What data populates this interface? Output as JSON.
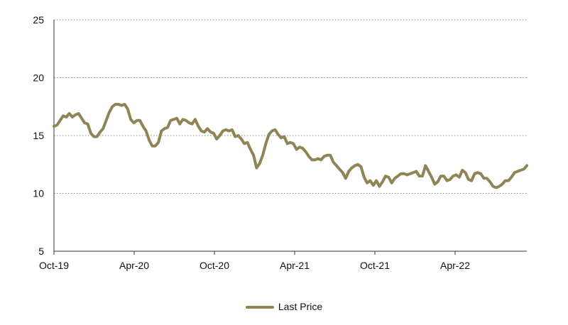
{
  "chart_data": {
    "type": "line",
    "x_tick_labels": [
      "Oct-19",
      "Apr-20",
      "Oct-20",
      "Apr-21",
      "Oct-21",
      "Apr-22"
    ],
    "y_ticks": [
      5,
      10,
      15,
      20,
      25
    ],
    "ylim": [
      5,
      25
    ],
    "grid": "horizontal dotted",
    "legend_position": "bottom",
    "series": [
      {
        "name": "Last Price",
        "color": "#8F8455",
        "values": [
          15.8,
          15.9,
          16.3,
          16.7,
          16.6,
          16.9,
          16.6,
          16.8,
          16.9,
          16.5,
          16.1,
          16.0,
          15.2,
          14.9,
          14.9,
          15.3,
          15.6,
          16.3,
          17.0,
          17.5,
          17.7,
          17.7,
          17.6,
          17.7,
          17.3,
          16.4,
          16.1,
          16.3,
          16.3,
          15.8,
          15.4,
          14.6,
          14.1,
          14.1,
          14.4,
          15.4,
          15.6,
          15.7,
          16.3,
          16.4,
          16.5,
          16.0,
          16.4,
          16.3,
          16.1,
          16.0,
          16.4,
          15.8,
          15.4,
          15.3,
          15.6,
          15.3,
          15.2,
          14.7,
          15.0,
          15.4,
          15.5,
          15.4,
          15.5,
          14.9,
          15.0,
          14.7,
          14.3,
          14.4,
          13.8,
          13.3,
          12.2,
          12.6,
          13.3,
          14.3,
          15.1,
          15.4,
          15.5,
          15.1,
          14.8,
          14.9,
          14.3,
          14.4,
          14.3,
          13.8,
          14.0,
          13.9,
          13.6,
          13.2,
          12.9,
          12.9,
          13.0,
          12.9,
          13.2,
          13.3,
          13.3,
          12.7,
          12.4,
          12.1,
          11.8,
          11.3,
          11.9,
          12.2,
          12.4,
          12.5,
          12.3,
          11.4,
          10.9,
          11.1,
          10.7,
          11.1,
          10.6,
          11.0,
          11.5,
          11.4,
          10.9,
          11.3,
          11.5,
          11.7,
          11.7,
          11.6,
          11.7,
          11.8,
          11.9,
          11.5,
          11.5,
          12.4,
          11.9,
          11.4,
          10.8,
          11.0,
          11.5,
          11.5,
          11.1,
          11.2,
          11.5,
          11.6,
          11.4,
          12.0,
          11.8,
          11.2,
          11.1,
          11.7,
          11.8,
          11.7,
          11.3,
          11.3,
          11.0,
          10.6,
          10.5,
          10.6,
          10.8,
          11.1,
          11.1,
          11.4,
          11.8,
          11.9,
          12.0,
          12.1,
          12.4
        ]
      }
    ]
  }
}
